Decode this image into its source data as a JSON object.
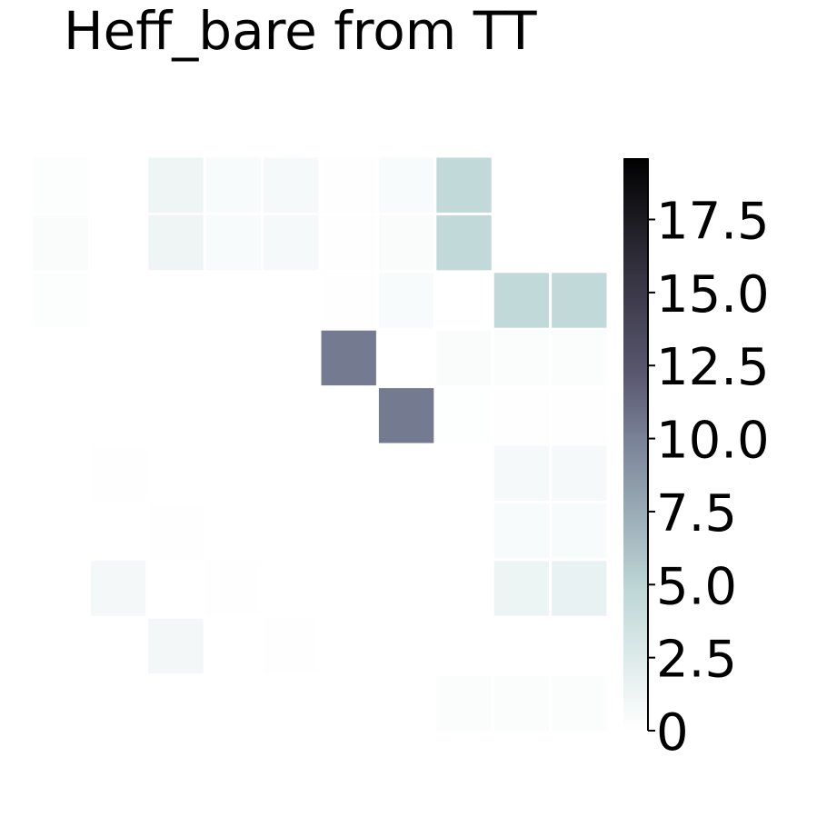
{
  "chart_data": {
    "type": "heatmap",
    "title": "Heff_bare from TT",
    "xlabel": "",
    "ylabel": "",
    "rows": 10,
    "cols": 10,
    "values": [
      [
        0.25,
        0,
        1.2,
        0.5,
        0.7,
        0.1,
        0.5,
        4.6,
        0,
        0
      ],
      [
        0.35,
        0,
        1.2,
        0.5,
        0.7,
        0.1,
        0.4,
        4.6,
        0,
        0
      ],
      [
        0.25,
        0,
        0,
        0,
        0,
        0.1,
        0.5,
        0,
        4.6,
        4.6
      ],
      [
        0,
        0,
        0,
        0,
        0,
        10.3,
        0,
        0.4,
        0.3,
        0.3
      ],
      [
        0,
        0,
        0,
        0,
        0,
        0,
        10.3,
        0.15,
        0.1,
        0.1
      ],
      [
        0,
        0.1,
        0,
        0,
        0,
        0,
        0,
        0,
        0.7,
        0.7
      ],
      [
        0,
        0,
        0.1,
        0,
        0,
        0,
        0,
        0,
        0.5,
        0.5
      ],
      [
        0,
        0.8,
        0,
        0.1,
        0,
        0,
        0,
        0,
        1.3,
        1.6
      ],
      [
        0,
        0,
        0.9,
        0,
        0.1,
        0,
        0,
        0,
        0,
        0
      ],
      [
        0,
        0,
        0,
        0,
        0,
        0,
        0,
        0.3,
        0.3,
        0.3
      ]
    ],
    "colorbar": {
      "colormap": "bone_r",
      "vmin": 0,
      "vmax": 19.6,
      "ticks": [
        0,
        2.5,
        5.0,
        7.5,
        10.0,
        12.5,
        15.0,
        17.5
      ],
      "tick_labels": [
        "0",
        "2.5",
        "5.0",
        "7.5",
        "10.0",
        "12.5",
        "15.0",
        "17.5"
      ]
    },
    "grid": false,
    "cell_borders": "#ffffff"
  }
}
